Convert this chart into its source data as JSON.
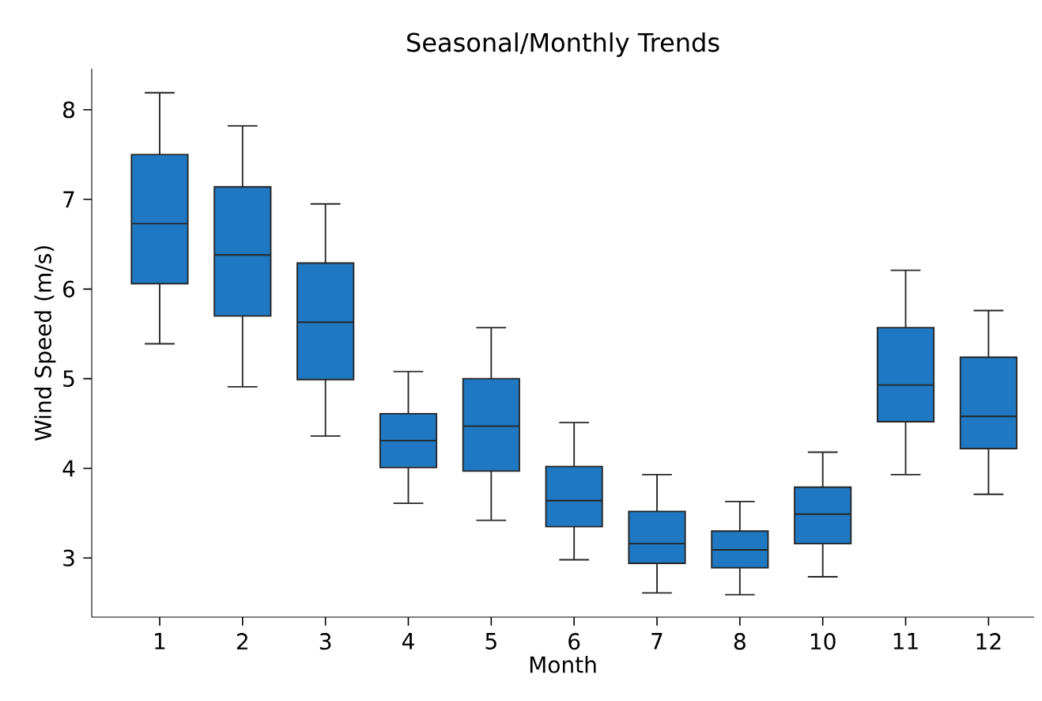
{
  "chart_data": {
    "type": "box",
    "title": "Seasonal/Monthly Trends",
    "xlabel": "Month",
    "ylabel": "Wind Speed (m/s)",
    "categories": [
      "1",
      "2",
      "3",
      "4",
      "5",
      "6",
      "7",
      "8",
      "10",
      "11",
      "12"
    ],
    "color": "#1f78c1",
    "boxes": [
      {
        "low": 5.39,
        "q1": 6.06,
        "median": 6.73,
        "q3": 7.5,
        "high": 8.19
      },
      {
        "low": 4.91,
        "q1": 5.7,
        "median": 6.38,
        "q3": 7.14,
        "high": 7.82
      },
      {
        "low": 4.36,
        "q1": 4.99,
        "median": 5.63,
        "q3": 6.29,
        "high": 6.95
      },
      {
        "low": 3.61,
        "q1": 4.01,
        "median": 4.31,
        "q3": 4.61,
        "high": 5.08
      },
      {
        "low": 3.42,
        "q1": 3.97,
        "median": 4.47,
        "q3": 5.0,
        "high": 5.57
      },
      {
        "low": 2.98,
        "q1": 3.35,
        "median": 3.64,
        "q3": 4.02,
        "high": 4.51
      },
      {
        "low": 2.61,
        "q1": 2.94,
        "median": 3.16,
        "q3": 3.52,
        "high": 3.93
      },
      {
        "low": 2.59,
        "q1": 2.89,
        "median": 3.09,
        "q3": 3.3,
        "high": 3.63
      },
      {
        "low": 2.79,
        "q1": 3.16,
        "median": 3.49,
        "q3": 3.79,
        "high": 4.18
      },
      {
        "low": 3.93,
        "q1": 4.52,
        "median": 4.93,
        "q3": 5.57,
        "high": 6.21
      },
      {
        "low": 3.71,
        "q1": 4.22,
        "median": 4.58,
        "q3": 5.24,
        "high": 5.76
      }
    ],
    "ylim": [
      2.34,
      8.46
    ],
    "yticks": [
      3,
      4,
      5,
      6,
      7,
      8
    ]
  }
}
